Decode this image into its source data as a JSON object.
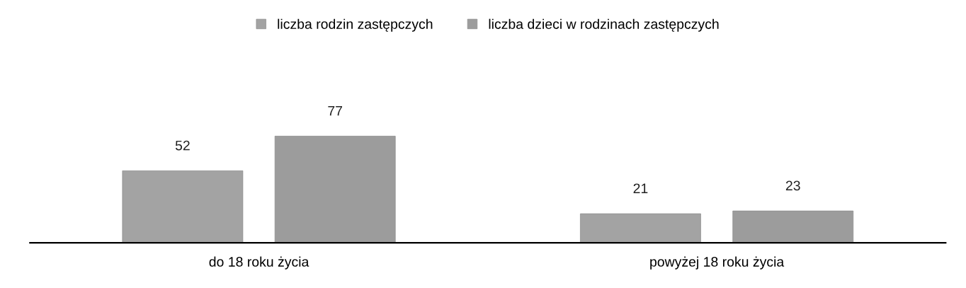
{
  "chart_data": {
    "type": "bar",
    "categories": [
      "do 18 roku życia",
      "powyżej 18 roku życia"
    ],
    "series": [
      {
        "name": "liczba rodzin zastępczych",
        "color": "#a3a3a3",
        "values": [
          52,
          21
        ]
      },
      {
        "name": "liczba dzieci w rodzinach zastępczych",
        "color": "#9c9c9c",
        "values": [
          77,
          23
        ]
      }
    ],
    "data_labels": true,
    "legend": "top",
    "grid": false
  }
}
